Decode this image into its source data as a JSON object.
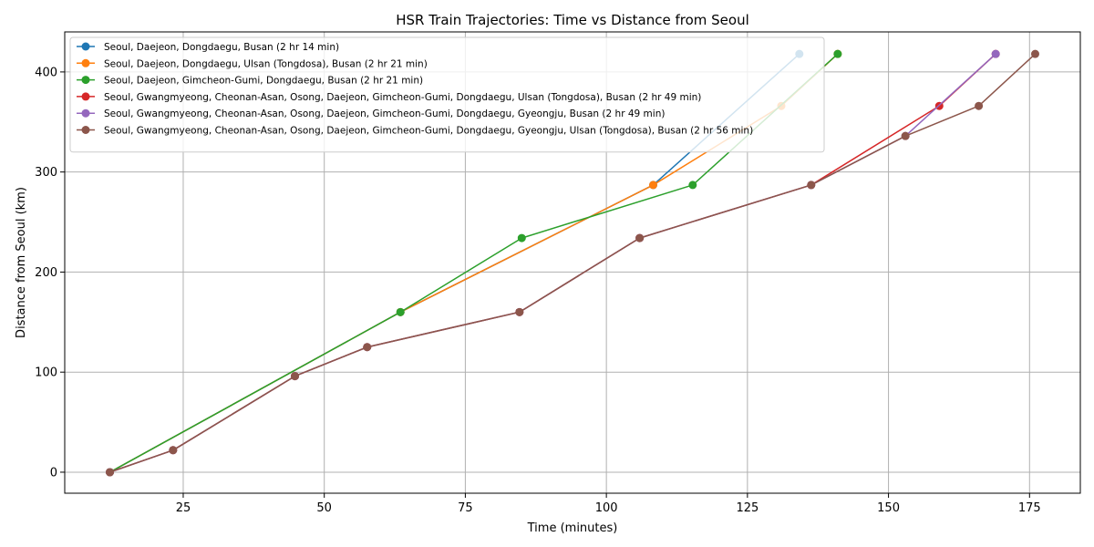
{
  "chart_data": {
    "type": "line",
    "title": "HSR Train Trajectories: Time vs Distance from Seoul",
    "xlabel": "Time (minutes)",
    "ylabel": "Distance from Seoul (km)",
    "xlim": [
      4,
      184
    ],
    "ylim": [
      -21,
      440
    ],
    "xticks": [
      25,
      50,
      75,
      100,
      125,
      150,
      175
    ],
    "yticks": [
      0,
      100,
      200,
      300,
      400
    ],
    "grid": true,
    "legend_position": "top-left",
    "series": [
      {
        "name": "Seoul, Daejeon, Dongdaegu, Busan (2 hr 14 min)",
        "color": "#1f77b4",
        "x": [
          12,
          63.5,
          108.3,
          134.2
        ],
        "y": [
          0,
          160,
          287,
          418
        ]
      },
      {
        "name": "Seoul, Daejeon, Dongdaegu, Ulsan (Tongdosa), Busan (2 hr 21 min)",
        "color": "#ff7f0e",
        "x": [
          12,
          63.5,
          108.3,
          131,
          141
        ],
        "y": [
          0,
          160,
          287,
          366,
          418
        ]
      },
      {
        "name": "Seoul, Daejeon, Gimcheon-Gumi, Dongdaegu, Busan (2 hr 21 min)",
        "color": "#2ca02c",
        "x": [
          12,
          63.5,
          85,
          115.3,
          141
        ],
        "y": [
          0,
          160,
          234,
          287,
          418
        ]
      },
      {
        "name": "Seoul, Gwangmyeong, Cheonan-Asan, Osong, Daejeon, Gimcheon-Gumi, Dongdaegu, Ulsan (Tongdosa), Busan (2 hr 49 min)",
        "color": "#d62728",
        "x": [
          12,
          23.2,
          44.8,
          57.6,
          84.6,
          105.9,
          136.3,
          159,
          169
        ],
        "y": [
          0,
          22,
          96,
          125,
          160,
          234,
          287,
          366,
          418
        ]
      },
      {
        "name": "Seoul, Gwangmyeong, Cheonan-Asan, Osong, Daejeon, Gimcheon-Gumi, Dongdaegu, Gyeongju, Busan (2 hr 49 min)",
        "color": "#9467bd",
        "x": [
          12,
          23.2,
          44.8,
          57.6,
          84.6,
          105.9,
          136.3,
          153,
          169
        ],
        "y": [
          0,
          22,
          96,
          125,
          160,
          234,
          287,
          336,
          418
        ]
      },
      {
        "name": "Seoul, Gwangmyeong, Cheonan-Asan, Osong, Daejeon, Gimcheon-Gumi, Dongdaegu, Gyeongju, Ulsan (Tongdosa), Busan (2 hr 56 min)",
        "color": "#8c564b",
        "x": [
          12,
          23.2,
          44.8,
          57.6,
          84.6,
          105.9,
          136.3,
          153,
          166,
          176
        ],
        "y": [
          0,
          22,
          96,
          125,
          160,
          234,
          287,
          336,
          366,
          418
        ]
      }
    ]
  }
}
